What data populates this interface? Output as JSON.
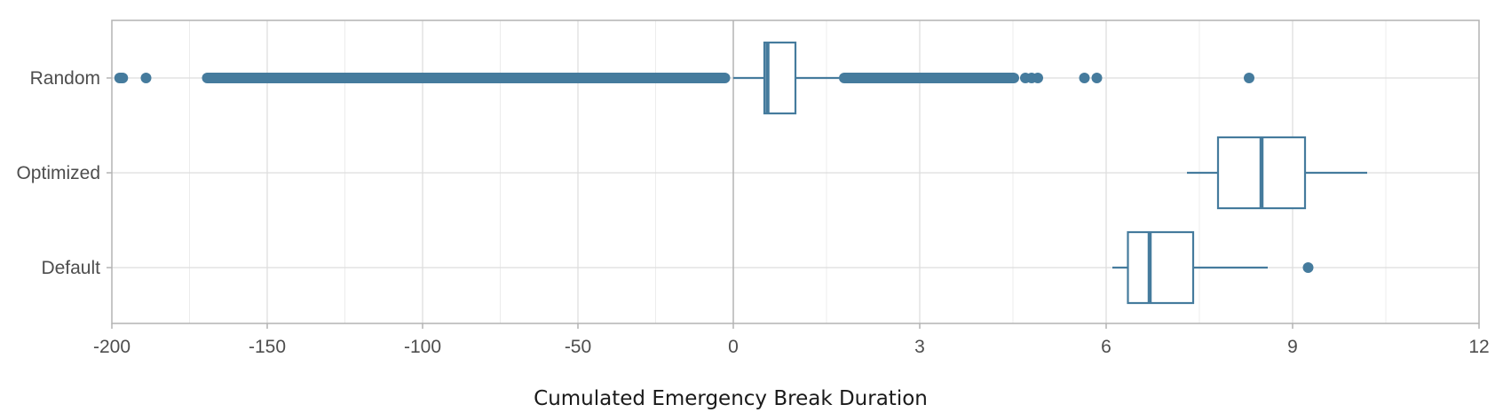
{
  "chart_data": {
    "type": "boxplot",
    "xlabel": "Cumulated Emergency Break Duration",
    "ylabel": "",
    "color": "#457b9d",
    "grid": true,
    "axis_break": "piecewise x-axis: linear -200..0 on left half, linear 0..12 on right half",
    "x_ticks": [
      "-200",
      "-150",
      "-100",
      "-50",
      "0",
      "3",
      "6",
      "9",
      "12"
    ],
    "categories": [
      "Random",
      "Optimized",
      "Default"
    ],
    "series": [
      {
        "name": "Random",
        "whisker_low": 0.0,
        "q1": 0.5,
        "median": 0.55,
        "q3": 1.0,
        "whisker_high": 1.7,
        "outliers_dense_ranges": [
          [
            -171,
            -1
          ],
          [
            1.7,
            4.6
          ]
        ],
        "outliers": [
          -197.5,
          -197,
          -196.5,
          -189,
          4.7,
          4.8,
          4.9,
          5.65,
          5.85,
          8.3
        ]
      },
      {
        "name": "Optimized",
        "whisker_low": 7.3,
        "q1": 7.8,
        "median": 8.5,
        "q3": 9.2,
        "whisker_high": 10.2,
        "outliers_dense_ranges": [],
        "outliers": []
      },
      {
        "name": "Default",
        "whisker_low": 6.1,
        "q1": 6.35,
        "median": 6.7,
        "q3": 7.4,
        "whisker_high": 8.6,
        "outliers_dense_ranges": [],
        "outliers": [
          9.25
        ]
      }
    ]
  }
}
